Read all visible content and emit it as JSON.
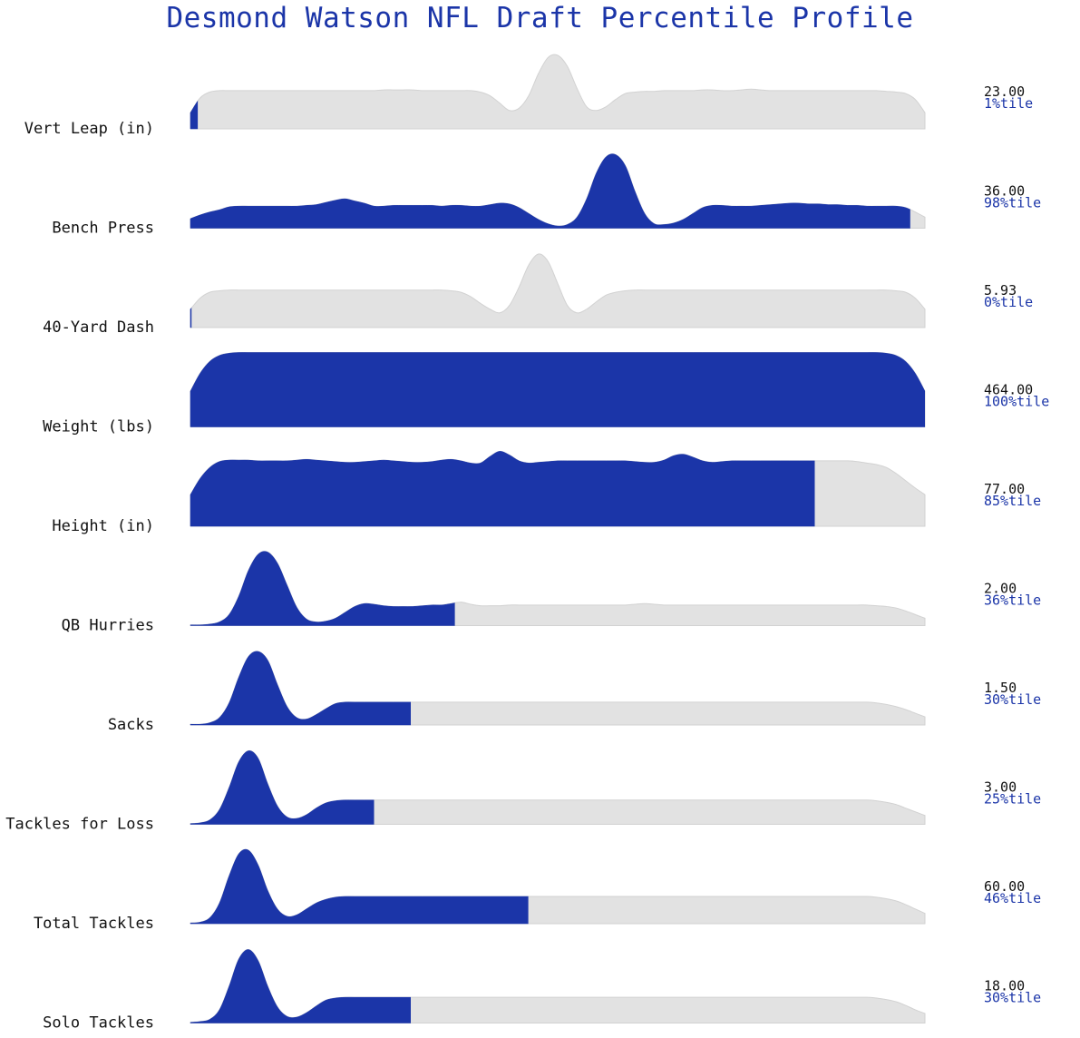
{
  "title": "Desmond Watson NFL Draft Percentile Profile",
  "colors": {
    "highlight": "#1b35a8",
    "base": "#e2e2e2",
    "base_stroke": "#d2d2d2",
    "title": "#1b35a8"
  },
  "chart_data": {
    "type": "ridgeline",
    "title": "Desmond Watson NFL Draft Percentile Profile",
    "rows": [
      {
        "label": "Vert Leap (in)",
        "value": "23.00",
        "percentile": 1,
        "percentile_label": "1%tile",
        "profile": [
          0.22,
          0.42,
          0.5,
          0.52,
          0.52,
          0.52,
          0.52,
          0.52,
          0.52,
          0.52,
          0.52,
          0.52,
          0.52,
          0.52,
          0.52,
          0.52,
          0.52,
          0.52,
          0.52,
          0.52,
          0.53,
          0.53,
          0.53,
          0.53,
          0.52,
          0.52,
          0.52,
          0.52,
          0.52,
          0.52,
          0.5,
          0.45,
          0.35,
          0.25,
          0.28,
          0.45,
          0.75,
          0.97,
          1.0,
          0.85,
          0.55,
          0.3,
          0.25,
          0.3,
          0.4,
          0.48,
          0.5,
          0.51,
          0.51,
          0.52,
          0.52,
          0.52,
          0.52,
          0.53,
          0.53,
          0.52,
          0.52,
          0.53,
          0.54,
          0.53,
          0.52,
          0.52,
          0.52,
          0.52,
          0.52,
          0.52,
          0.52,
          0.52,
          0.52,
          0.52,
          0.52,
          0.52,
          0.51,
          0.5,
          0.48,
          0.4,
          0.22
        ]
      },
      {
        "label": "Bench Press",
        "value": "36.00",
        "percentile": 98,
        "percentile_label": "98%tile",
        "profile": [
          0.13,
          0.18,
          0.22,
          0.25,
          0.29,
          0.3,
          0.3,
          0.3,
          0.3,
          0.3,
          0.3,
          0.3,
          0.31,
          0.32,
          0.35,
          0.38,
          0.4,
          0.37,
          0.34,
          0.3,
          0.3,
          0.31,
          0.31,
          0.31,
          0.31,
          0.31,
          0.3,
          0.31,
          0.31,
          0.3,
          0.3,
          0.32,
          0.34,
          0.33,
          0.28,
          0.2,
          0.12,
          0.06,
          0.03,
          0.05,
          0.15,
          0.4,
          0.75,
          0.97,
          1.0,
          0.85,
          0.5,
          0.2,
          0.06,
          0.05,
          0.07,
          0.12,
          0.2,
          0.28,
          0.31,
          0.31,
          0.3,
          0.3,
          0.3,
          0.31,
          0.32,
          0.33,
          0.34,
          0.34,
          0.33,
          0.33,
          0.32,
          0.32,
          0.31,
          0.31,
          0.3,
          0.3,
          0.3,
          0.3,
          0.28,
          0.22,
          0.15
        ]
      },
      {
        "label": "40-Yard Dash",
        "value": "5.93",
        "percentile": 0,
        "percentile_label": "0%tile",
        "profile": [
          0.25,
          0.4,
          0.48,
          0.5,
          0.51,
          0.51,
          0.51,
          0.51,
          0.51,
          0.51,
          0.51,
          0.51,
          0.51,
          0.51,
          0.51,
          0.51,
          0.51,
          0.51,
          0.51,
          0.51,
          0.51,
          0.51,
          0.51,
          0.51,
          0.51,
          0.51,
          0.51,
          0.5,
          0.48,
          0.42,
          0.33,
          0.25,
          0.2,
          0.3,
          0.55,
          0.85,
          1.0,
          0.9,
          0.6,
          0.3,
          0.2,
          0.25,
          0.35,
          0.44,
          0.48,
          0.5,
          0.51,
          0.51,
          0.51,
          0.51,
          0.51,
          0.51,
          0.51,
          0.51,
          0.51,
          0.51,
          0.51,
          0.51,
          0.51,
          0.51,
          0.51,
          0.51,
          0.51,
          0.51,
          0.51,
          0.51,
          0.51,
          0.51,
          0.51,
          0.51,
          0.51,
          0.51,
          0.51,
          0.5,
          0.48,
          0.4,
          0.25
        ]
      },
      {
        "label": "Weight (lbs)",
        "value": "464.00",
        "percentile": 100,
        "percentile_label": "100%tile",
        "profile": [
          0.48,
          0.72,
          0.88,
          0.96,
          0.99,
          1.0,
          1.0,
          1.0,
          1.0,
          1.0,
          1.0,
          1.0,
          1.0,
          1.0,
          1.0,
          1.0,
          1.0,
          1.0,
          1.0,
          1.0,
          1.0,
          1.0,
          1.0,
          1.0,
          1.0,
          1.0,
          1.0,
          1.0,
          1.0,
          1.0,
          1.0,
          1.0,
          1.0,
          1.0,
          1.0,
          1.0,
          1.0,
          1.0,
          1.0,
          1.0,
          1.0,
          1.0,
          1.0,
          1.0,
          1.0,
          1.0,
          1.0,
          1.0,
          1.0,
          1.0,
          1.0,
          1.0,
          1.0,
          1.0,
          1.0,
          1.0,
          1.0,
          1.0,
          1.0,
          1.0,
          1.0,
          1.0,
          1.0,
          1.0,
          1.0,
          1.0,
          1.0,
          1.0,
          1.0,
          1.0,
          1.0,
          1.0,
          0.99,
          0.96,
          0.88,
          0.72,
          0.48
        ]
      },
      {
        "label": "Height (in)",
        "value": "77.00",
        "percentile": 85,
        "percentile_label": "85%tile",
        "profile": [
          0.43,
          0.65,
          0.8,
          0.88,
          0.9,
          0.9,
          0.9,
          0.89,
          0.89,
          0.89,
          0.89,
          0.9,
          0.91,
          0.9,
          0.89,
          0.88,
          0.87,
          0.87,
          0.88,
          0.89,
          0.9,
          0.89,
          0.88,
          0.87,
          0.87,
          0.88,
          0.9,
          0.91,
          0.89,
          0.86,
          0.86,
          0.95,
          1.02,
          0.97,
          0.89,
          0.86,
          0.87,
          0.88,
          0.89,
          0.89,
          0.89,
          0.89,
          0.89,
          0.89,
          0.89,
          0.89,
          0.88,
          0.87,
          0.87,
          0.9,
          0.96,
          0.98,
          0.94,
          0.89,
          0.87,
          0.88,
          0.89,
          0.89,
          0.89,
          0.89,
          0.89,
          0.89,
          0.89,
          0.89,
          0.89,
          0.89,
          0.89,
          0.89,
          0.89,
          0.88,
          0.86,
          0.84,
          0.8,
          0.72,
          0.62,
          0.52,
          0.43
        ]
      },
      {
        "label": "QB Hurries",
        "value": "2.00",
        "percentile": 36,
        "percentile_label": "36%tile",
        "profile": [
          0.01,
          0.01,
          0.02,
          0.05,
          0.15,
          0.4,
          0.75,
          0.97,
          1.0,
          0.85,
          0.55,
          0.25,
          0.09,
          0.05,
          0.06,
          0.1,
          0.18,
          0.26,
          0.3,
          0.29,
          0.27,
          0.26,
          0.26,
          0.26,
          0.27,
          0.28,
          0.28,
          0.3,
          0.32,
          0.29,
          0.27,
          0.27,
          0.27,
          0.28,
          0.28,
          0.28,
          0.28,
          0.28,
          0.28,
          0.28,
          0.28,
          0.28,
          0.28,
          0.28,
          0.28,
          0.28,
          0.29,
          0.3,
          0.29,
          0.28,
          0.28,
          0.28,
          0.28,
          0.28,
          0.28,
          0.28,
          0.28,
          0.28,
          0.28,
          0.28,
          0.28,
          0.28,
          0.28,
          0.28,
          0.28,
          0.28,
          0.28,
          0.28,
          0.28,
          0.28,
          0.28,
          0.27,
          0.26,
          0.24,
          0.2,
          0.15,
          0.1
        ]
      },
      {
        "label": "Sacks",
        "value": "1.50",
        "percentile": 30,
        "percentile_label": "30%tile",
        "profile": [
          0.01,
          0.01,
          0.03,
          0.1,
          0.3,
          0.65,
          0.93,
          1.0,
          0.88,
          0.55,
          0.25,
          0.1,
          0.08,
          0.14,
          0.22,
          0.29,
          0.31,
          0.31,
          0.31,
          0.31,
          0.31,
          0.31,
          0.31,
          0.31,
          0.31,
          0.31,
          0.31,
          0.31,
          0.31,
          0.31,
          0.31,
          0.31,
          0.31,
          0.31,
          0.31,
          0.31,
          0.31,
          0.31,
          0.31,
          0.31,
          0.31,
          0.31,
          0.31,
          0.31,
          0.31,
          0.31,
          0.31,
          0.31,
          0.31,
          0.31,
          0.31,
          0.31,
          0.31,
          0.31,
          0.31,
          0.31,
          0.31,
          0.31,
          0.31,
          0.31,
          0.31,
          0.31,
          0.31,
          0.31,
          0.31,
          0.31,
          0.31,
          0.31,
          0.31,
          0.31,
          0.31,
          0.3,
          0.28,
          0.25,
          0.21,
          0.16,
          0.11
        ]
      },
      {
        "label": "Tackles for Loss",
        "value": "3.00",
        "percentile": 25,
        "percentile_label": "25%tile",
        "profile": [
          0.01,
          0.02,
          0.06,
          0.2,
          0.5,
          0.85,
          1.0,
          0.9,
          0.55,
          0.25,
          0.1,
          0.08,
          0.13,
          0.22,
          0.29,
          0.32,
          0.33,
          0.33,
          0.33,
          0.33,
          0.33,
          0.33,
          0.33,
          0.33,
          0.33,
          0.33,
          0.33,
          0.33,
          0.33,
          0.33,
          0.33,
          0.33,
          0.33,
          0.33,
          0.33,
          0.33,
          0.33,
          0.33,
          0.33,
          0.33,
          0.33,
          0.33,
          0.33,
          0.33,
          0.33,
          0.33,
          0.33,
          0.33,
          0.33,
          0.33,
          0.33,
          0.33,
          0.33,
          0.33,
          0.33,
          0.33,
          0.33,
          0.33,
          0.33,
          0.33,
          0.33,
          0.33,
          0.33,
          0.33,
          0.33,
          0.33,
          0.33,
          0.33,
          0.33,
          0.33,
          0.33,
          0.32,
          0.3,
          0.27,
          0.22,
          0.17,
          0.12
        ]
      },
      {
        "label": "Total Tackles",
        "value": "60.00",
        "percentile": 46,
        "percentile_label": "46%tile",
        "profile": [
          0.01,
          0.02,
          0.08,
          0.28,
          0.65,
          0.95,
          1.0,
          0.8,
          0.45,
          0.2,
          0.1,
          0.12,
          0.2,
          0.28,
          0.33,
          0.36,
          0.37,
          0.37,
          0.37,
          0.37,
          0.37,
          0.37,
          0.37,
          0.37,
          0.37,
          0.37,
          0.37,
          0.37,
          0.37,
          0.37,
          0.37,
          0.37,
          0.37,
          0.37,
          0.37,
          0.37,
          0.37,
          0.37,
          0.37,
          0.37,
          0.37,
          0.37,
          0.37,
          0.37,
          0.37,
          0.37,
          0.37,
          0.37,
          0.37,
          0.37,
          0.37,
          0.37,
          0.37,
          0.37,
          0.37,
          0.37,
          0.37,
          0.37,
          0.37,
          0.37,
          0.37,
          0.37,
          0.37,
          0.37,
          0.37,
          0.37,
          0.37,
          0.37,
          0.37,
          0.37,
          0.37,
          0.36,
          0.34,
          0.31,
          0.26,
          0.2,
          0.14
        ]
      },
      {
        "label": "Solo Tackles",
        "value": "18.00",
        "percentile": 30,
        "percentile_label": "30%tile",
        "profile": [
          0.01,
          0.02,
          0.05,
          0.18,
          0.5,
          0.87,
          1.0,
          0.85,
          0.5,
          0.22,
          0.09,
          0.08,
          0.14,
          0.23,
          0.31,
          0.34,
          0.35,
          0.35,
          0.35,
          0.35,
          0.35,
          0.35,
          0.35,
          0.35,
          0.35,
          0.35,
          0.35,
          0.35,
          0.35,
          0.35,
          0.35,
          0.35,
          0.35,
          0.35,
          0.35,
          0.35,
          0.35,
          0.35,
          0.35,
          0.35,
          0.35,
          0.35,
          0.35,
          0.35,
          0.35,
          0.35,
          0.35,
          0.35,
          0.35,
          0.35,
          0.35,
          0.35,
          0.35,
          0.35,
          0.35,
          0.35,
          0.35,
          0.35,
          0.35,
          0.35,
          0.35,
          0.35,
          0.35,
          0.35,
          0.35,
          0.35,
          0.35,
          0.35,
          0.35,
          0.35,
          0.35,
          0.34,
          0.32,
          0.29,
          0.24,
          0.18,
          0.13
        ]
      }
    ]
  }
}
